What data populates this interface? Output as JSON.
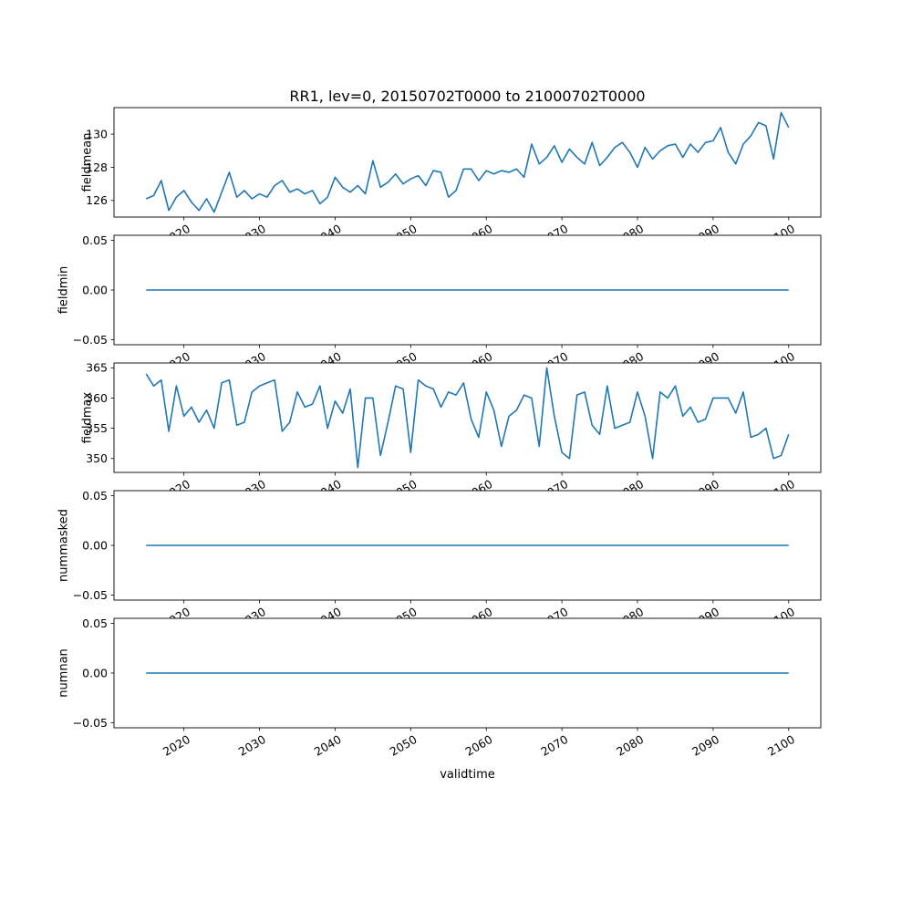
{
  "chart_data": {
    "type": "line",
    "title": "RR1, lev=0, 20150702T0000 to 21000702T0000",
    "xlabel": "validtime",
    "line_color": "#1f77b4",
    "axis_color": "#000000",
    "background": "#ffffff",
    "legend": "none",
    "grid": false,
    "xlim": [
      2010.75,
      2104.25
    ],
    "xticks": [
      2020,
      2030,
      2040,
      2050,
      2060,
      2070,
      2080,
      2090,
      2100
    ],
    "xtick_labels": [
      "2020",
      "2030",
      "2040",
      "2050",
      "2060",
      "2070",
      "2080",
      "2090",
      "2100"
    ],
    "x": [
      2015,
      2016,
      2017,
      2018,
      2019,
      2020,
      2021,
      2022,
      2023,
      2024,
      2025,
      2026,
      2027,
      2028,
      2029,
      2030,
      2031,
      2032,
      2033,
      2034,
      2035,
      2036,
      2037,
      2038,
      2039,
      2040,
      2041,
      2042,
      2043,
      2044,
      2045,
      2046,
      2047,
      2048,
      2049,
      2050,
      2051,
      2052,
      2053,
      2054,
      2055,
      2056,
      2057,
      2058,
      2059,
      2060,
      2061,
      2062,
      2063,
      2064,
      2065,
      2066,
      2067,
      2068,
      2069,
      2070,
      2071,
      2072,
      2073,
      2074,
      2075,
      2076,
      2077,
      2078,
      2079,
      2080,
      2081,
      2082,
      2083,
      2084,
      2085,
      2086,
      2087,
      2088,
      2089,
      2090,
      2091,
      2092,
      2093,
      2094,
      2095,
      2096,
      2097,
      2098,
      2099,
      2100
    ],
    "subplots": [
      {
        "ylabel": "fieldmean",
        "ylim": [
          125.0,
          131.6
        ],
        "yticks": [
          126,
          128,
          130
        ],
        "ytick_labels": [
          "126",
          "128",
          "130"
        ],
        "values": [
          126.1,
          126.3,
          127.2,
          125.4,
          126.2,
          126.6,
          125.9,
          125.4,
          126.1,
          125.3,
          126.5,
          127.7,
          126.2,
          126.6,
          126.1,
          126.4,
          126.2,
          126.9,
          127.2,
          126.5,
          126.7,
          126.4,
          126.6,
          125.8,
          126.2,
          127.4,
          126.8,
          126.5,
          126.9,
          126.4,
          128.4,
          126.8,
          127.1,
          127.6,
          127.0,
          127.3,
          127.5,
          126.9,
          127.8,
          127.7,
          126.2,
          126.6,
          127.9,
          127.9,
          127.2,
          127.8,
          127.6,
          127.8,
          127.7,
          127.9,
          127.4,
          129.4,
          128.2,
          128.6,
          129.3,
          128.3,
          129.1,
          128.6,
          128.2,
          129.5,
          128.1,
          128.6,
          129.2,
          129.5,
          128.9,
          128.0,
          129.2,
          128.5,
          129.0,
          129.3,
          129.4,
          128.6,
          129.4,
          128.9,
          129.5,
          129.6,
          130.4,
          128.9,
          128.2,
          129.4,
          129.9,
          130.7,
          130.5,
          128.5,
          131.3,
          130.4
        ]
      },
      {
        "ylabel": "fieldmin",
        "ylim": [
          -0.055,
          0.055
        ],
        "yticks": [
          -0.05,
          0.0,
          0.05
        ],
        "ytick_labels": [
          "−0.05",
          "0.00",
          "0.05"
        ],
        "constant": 0.0
      },
      {
        "ylabel": "fieldmax",
        "ylim": [
          347.7,
          365.8
        ],
        "yticks": [
          350,
          355,
          360,
          365
        ],
        "ytick_labels": [
          "350",
          "355",
          "360",
          "365"
        ],
        "values": [
          364,
          362,
          363,
          354.5,
          362,
          357,
          358.5,
          356,
          358,
          355,
          362.5,
          363,
          355.5,
          356,
          361,
          362,
          362.5,
          363,
          354.5,
          356,
          361,
          358.5,
          359,
          362,
          355,
          359.5,
          357.5,
          361.5,
          348.5,
          360,
          360,
          350.5,
          356,
          362,
          361.5,
          351,
          363,
          362,
          361.5,
          358.5,
          361,
          360.5,
          362.5,
          356.5,
          353.5,
          361,
          358,
          352,
          357,
          358,
          360.5,
          360,
          352,
          365,
          357,
          351,
          350,
          360.5,
          361,
          355.5,
          354,
          362,
          355,
          355.5,
          356,
          361,
          357,
          350,
          361,
          360,
          362,
          357,
          358.5,
          356,
          356.5,
          360,
          360,
          360,
          357.5,
          361,
          353.5,
          354,
          355,
          350,
          350.5,
          354
        ]
      },
      {
        "ylabel": "nummasked",
        "ylim": [
          -0.055,
          0.055
        ],
        "yticks": [
          -0.05,
          0.0,
          0.05
        ],
        "ytick_labels": [
          "−0.05",
          "0.00",
          "0.05"
        ],
        "constant": 0.0
      },
      {
        "ylabel": "numnan",
        "ylim": [
          -0.055,
          0.055
        ],
        "yticks": [
          -0.05,
          0.0,
          0.05
        ],
        "ytick_labels": [
          "−0.05",
          "0.00",
          "0.05"
        ],
        "constant": 0.0
      }
    ]
  }
}
